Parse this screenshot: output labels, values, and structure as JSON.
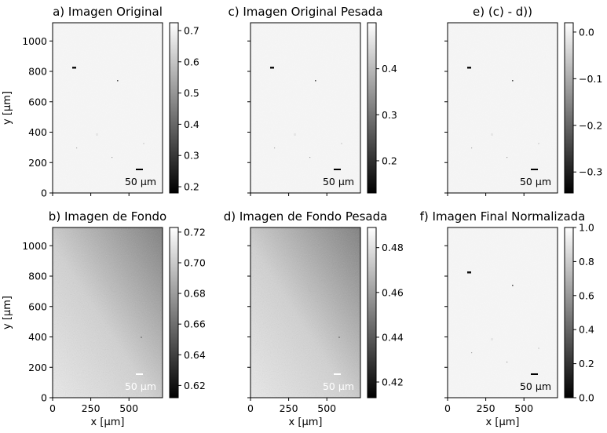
{
  "panels": [
    {
      "id": "a",
      "title": "a) Imagen Original",
      "style": "sample",
      "y_axis": {
        "label": "y [µm]",
        "ticks": [
          "0",
          "200",
          "400",
          "600",
          "800",
          "1000"
        ],
        "range": [
          0,
          1120
        ]
      },
      "x_axis": {
        "label": "",
        "ticks": [],
        "range": [
          0,
          720
        ]
      },
      "colorbar": {
        "ticks": [
          "0.2",
          "0.3",
          "0.4",
          "0.5",
          "0.6",
          "0.7"
        ],
        "range": [
          0.18,
          0.725
        ]
      },
      "scalebar": {
        "text": "50 µm",
        "color": "#000000"
      }
    },
    {
      "id": "c",
      "title": "c) Imagen Original Pesada",
      "style": "sample",
      "y_axis": {
        "label": "",
        "ticks": [],
        "range": [
          0,
          1120
        ]
      },
      "x_axis": {
        "label": "",
        "ticks": [],
        "range": [
          0,
          720
        ]
      },
      "colorbar": {
        "ticks": [
          "0.2",
          "0.3",
          "0.4"
        ],
        "range": [
          0.13,
          0.5
        ]
      },
      "scalebar": {
        "text": "50 µm",
        "color": "#000000"
      }
    },
    {
      "id": "e",
      "title": "e) (c) - d))",
      "style": "sample",
      "y_axis": {
        "label": "",
        "ticks": [],
        "range": [
          0,
          1120
        ]
      },
      "x_axis": {
        "label": "",
        "ticks": [],
        "range": [
          0,
          720
        ]
      },
      "colorbar": {
        "ticks": [
          "−0.3",
          "−0.2",
          "−0.1",
          "0.0"
        ],
        "range": [
          -0.345,
          0.02
        ]
      },
      "scalebar": {
        "text": "50 µm",
        "color": "#000000"
      }
    },
    {
      "id": "b",
      "title": "b) Imagen de Fondo",
      "style": "background",
      "y_axis": {
        "label": "y [µm]",
        "ticks": [
          "0",
          "200",
          "400",
          "600",
          "800",
          "1000"
        ],
        "range": [
          0,
          1120
        ]
      },
      "x_axis": {
        "label": "x [µm]",
        "ticks": [
          "0",
          "250",
          "500"
        ],
        "range": [
          0,
          720
        ]
      },
      "colorbar": {
        "ticks": [
          "0.62",
          "0.64",
          "0.66",
          "0.68",
          "0.70",
          "0.72"
        ],
        "range": [
          0.612,
          0.723
        ]
      },
      "scalebar": {
        "text": "50 µm",
        "color": "#ffffff"
      }
    },
    {
      "id": "d",
      "title": "d) Imagen de Fondo Pesada",
      "style": "background",
      "y_axis": {
        "label": "",
        "ticks": [],
        "range": [
          0,
          1120
        ]
      },
      "x_axis": {
        "label": "x [µm]",
        "ticks": [
          "0",
          "250",
          "500"
        ],
        "range": [
          0,
          720
        ]
      },
      "colorbar": {
        "ticks": [
          "0.42",
          "0.44",
          "0.46",
          "0.48"
        ],
        "range": [
          0.413,
          0.489
        ]
      },
      "scalebar": {
        "text": "50 µm",
        "color": "#ffffff"
      }
    },
    {
      "id": "f",
      "title": "f) Imagen Final Normalizada",
      "style": "sample",
      "y_axis": {
        "label": "",
        "ticks": [],
        "range": [
          0,
          1120
        ]
      },
      "x_axis": {
        "label": "x [µm]",
        "ticks": [
          "0",
          "250",
          "500"
        ],
        "range": [
          0,
          720
        ]
      },
      "colorbar": {
        "ticks": [
          "0.0",
          "0.2",
          "0.4",
          "0.6",
          "0.8",
          "1.0"
        ],
        "range": [
          0,
          1
        ]
      },
      "scalebar": {
        "text": "50 µm",
        "color": "#000000"
      }
    }
  ]
}
